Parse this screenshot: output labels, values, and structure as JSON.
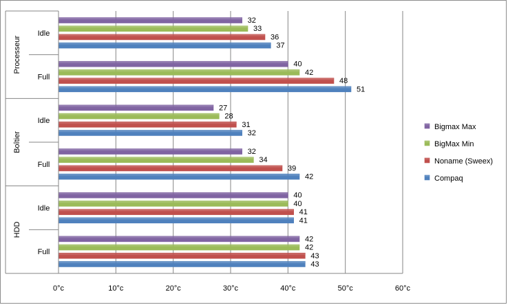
{
  "chart_data": {
    "type": "bar",
    "orientation": "horizontal",
    "groups": [
      {
        "label": "Processeur",
        "categories": [
          "Idle",
          "Full"
        ]
      },
      {
        "label": "Boîtier",
        "categories": [
          "Idle",
          "Full"
        ]
      },
      {
        "label": "HDD",
        "categories": [
          "Idle",
          "Full"
        ]
      }
    ],
    "series": [
      {
        "name": "Bigmax Max",
        "color": "#8064a2",
        "values": [
          32,
          40,
          27,
          32,
          40,
          42
        ]
      },
      {
        "name": "BigMax Min",
        "color": "#9bbb59",
        "values": [
          33,
          42,
          28,
          34,
          40,
          42
        ]
      },
      {
        "name": "Noname (Sweex)",
        "color": "#c0504d",
        "values": [
          36,
          48,
          31,
          39,
          41,
          43
        ]
      },
      {
        "name": "Compaq",
        "color": "#4f81bd",
        "values": [
          37,
          51,
          32,
          42,
          41,
          43
        ]
      }
    ],
    "xlim": [
      0,
      60
    ],
    "x_ticks": [
      "0°c",
      "10°c",
      "20°c",
      "30°c",
      "40°c",
      "50°c",
      "60°c"
    ],
    "x_tick_values": [
      0,
      10,
      20,
      30,
      40,
      50,
      60
    ],
    "grid": true,
    "legend_position": "right",
    "title": "",
    "xlabel": "",
    "ylabel": ""
  }
}
